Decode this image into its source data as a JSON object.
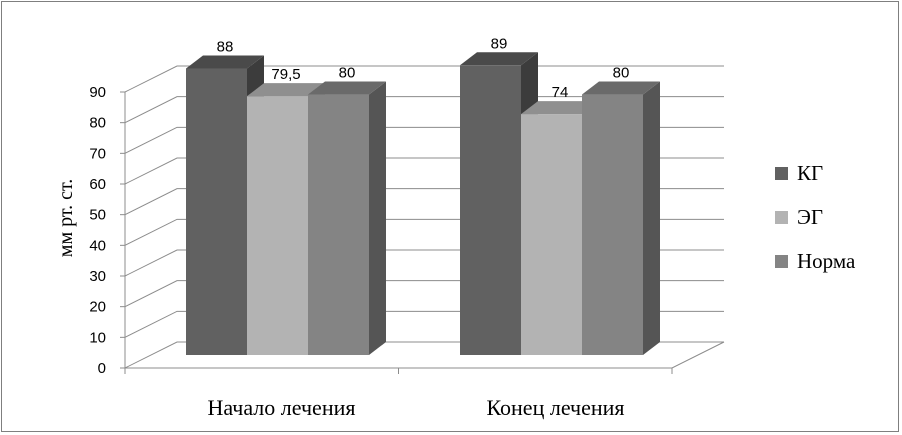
{
  "chart_data": {
    "type": "bar",
    "categories": [
      "Начало  лечения",
      "Конец лечения"
    ],
    "series": [
      {
        "name": "КГ",
        "values": [
          88,
          89
        ],
        "labels": [
          "88",
          "89"
        ],
        "color": "#616161",
        "side": "#3c3c3c",
        "top": "#4a4a4a"
      },
      {
        "name": "ЭГ",
        "values": [
          79.5,
          74
        ],
        "labels": [
          "79,5",
          "74"
        ],
        "color": "#b3b3b3",
        "side": "#909090",
        "top": "#8f8f8f"
      },
      {
        "name": "Норма",
        "values": [
          80,
          80
        ],
        "labels": [
          "80",
          "80"
        ],
        "color": "#848484",
        "side": "#555555",
        "top": "#6a6a6a"
      }
    ],
    "ylabel": "мм рт. ст.",
    "ylim": [
      0,
      90
    ],
    "yticks": [
      "0",
      "10",
      "20",
      "30",
      "40",
      "50",
      "60",
      "70",
      "80",
      "90"
    ],
    "grid": true,
    "three_d": true,
    "legend_position": "right"
  }
}
